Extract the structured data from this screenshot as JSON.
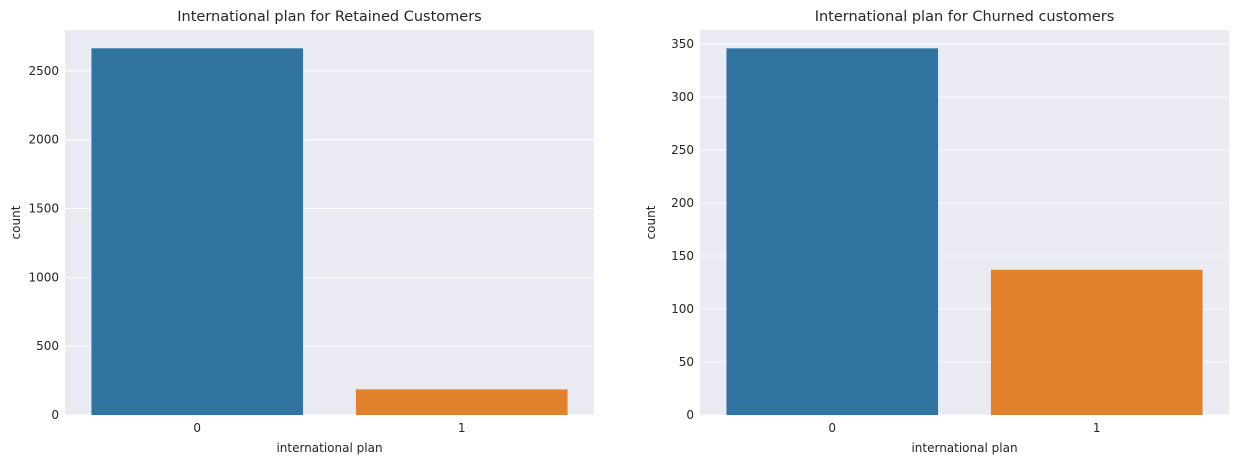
{
  "chart_data": [
    {
      "type": "bar",
      "title": "International plan for Retained Customers",
      "xlabel": "international plan",
      "ylabel": "count",
      "categories": [
        "0",
        "1"
      ],
      "values": [
        2664,
        186
      ],
      "colors": [
        "#3274a1",
        "#e1812c"
      ],
      "ylim": [
        0,
        2797
      ],
      "yticks": [
        0,
        500,
        1000,
        1500,
        2000,
        2500
      ],
      "grid": true,
      "background": "#eaeaf2"
    },
    {
      "type": "bar",
      "title": "International plan for Churned customers",
      "xlabel": "international plan",
      "ylabel": "count",
      "categories": [
        "0",
        "1"
      ],
      "values": [
        346,
        137
      ],
      "colors": [
        "#3274a1",
        "#e1812c"
      ],
      "ylim": [
        0,
        363.3
      ],
      "yticks": [
        0,
        50,
        100,
        150,
        200,
        250,
        300,
        350
      ],
      "grid": true,
      "background": "#eaeaf2"
    }
  ]
}
